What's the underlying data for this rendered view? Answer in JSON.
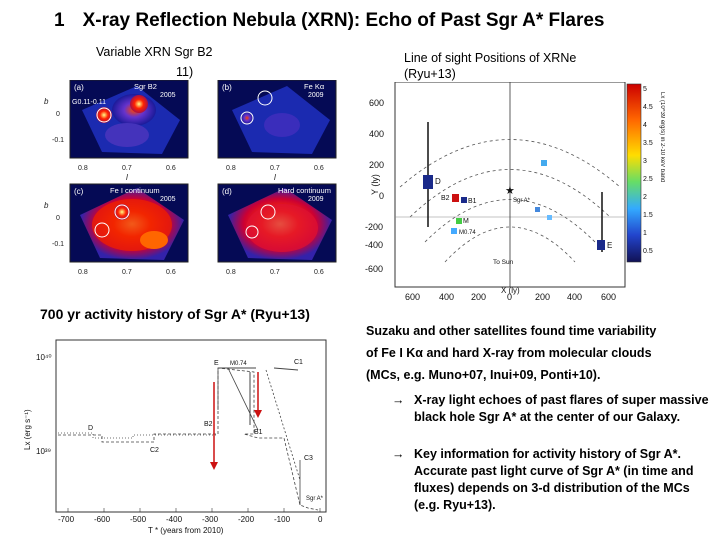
{
  "header": {
    "number": "1",
    "title": "X-ray Reflection Nebula (XRN): Echo of Past Sgr A* Flares"
  },
  "figure_left": {
    "title": "Variable XRN Sgr B2",
    "subtitle": "11)",
    "panel_labels": [
      "(a)",
      "(b)",
      "(c)",
      "(d)"
    ],
    "panel_names": [
      "Sgr B2",
      "Fe Kα",
      "Fe I continuum",
      "Hard continuum"
    ],
    "years": [
      "2005",
      "2009",
      "2005",
      "2009"
    ],
    "source_label": "G0.11-0.11",
    "axis_x_label": "l",
    "axis_y_label": "b",
    "x_ticks": [
      "0.8",
      "0.7",
      "0.6"
    ],
    "y_ticks": [
      "0",
      "-0.1"
    ]
  },
  "figure_right": {
    "title_line1": "Line of sight Positions of XRNe",
    "title_line2": "(Ryu+13)",
    "y_axis_label": "Y (ly)",
    "x_axis_label": "X (ly)",
    "y_ticks": [
      "600",
      "400",
      "200",
      "0",
      "-200",
      "-400",
      "-600"
    ],
    "x_ticks": [
      "600",
      "400",
      "200",
      "0",
      "200",
      "400",
      "600"
    ],
    "colorbar_ticks": [
      "5",
      "4.5",
      "4",
      "3.5",
      "3",
      "2.5",
      "2",
      "1.5",
      "1",
      "0.5"
    ],
    "colorbar_label": "Lx (10^39 erg/s) in 2-10 keV band",
    "labels": [
      "D",
      "B2",
      "B1",
      "M",
      "M0.74",
      "E",
      "Sgr A*",
      "To Sun"
    ]
  },
  "caption_left": "700 yr activity history of  Sgr A* (Ryu+13)",
  "history_plot": {
    "y_label": "Lx (erg s⁻¹)",
    "x_label": "T * (years from 2010)",
    "y_ticks": [
      "10⁴⁰",
      "10³⁹"
    ],
    "x_ticks": [
      "-700",
      "-600",
      "-500",
      "-400",
      "-300",
      "-200",
      "-100",
      "0"
    ],
    "source_labels": [
      "D",
      "C2",
      "B2",
      "E",
      "M0.74",
      "B1",
      "C1",
      "C3",
      "Sgr A*"
    ]
  },
  "text": {
    "para1_line1": "Suzaku and other satellites  found time variability",
    "para1_line2": "of Fe I Kα and hard X-ray from molecular clouds",
    "para1_line3": "(MCs, e.g. Muno+07, Inui+09, Ponti+10).",
    "bullets": [
      {
        "arrow": "→",
        "text": "X-ray light echoes of past flares of super massive black hole Sgr A* at the center of our Galaxy."
      },
      {
        "arrow": "→",
        "text": "Key information for activity history of Sgr A*. Accurate past light curve of Sgr A* (in time and fluxes)  depends on 3-d distribution of the MCs (e.g. Ryu+13)."
      }
    ]
  },
  "colors": {
    "image_bg": "#050a55",
    "accent_red": "#cc1111"
  }
}
